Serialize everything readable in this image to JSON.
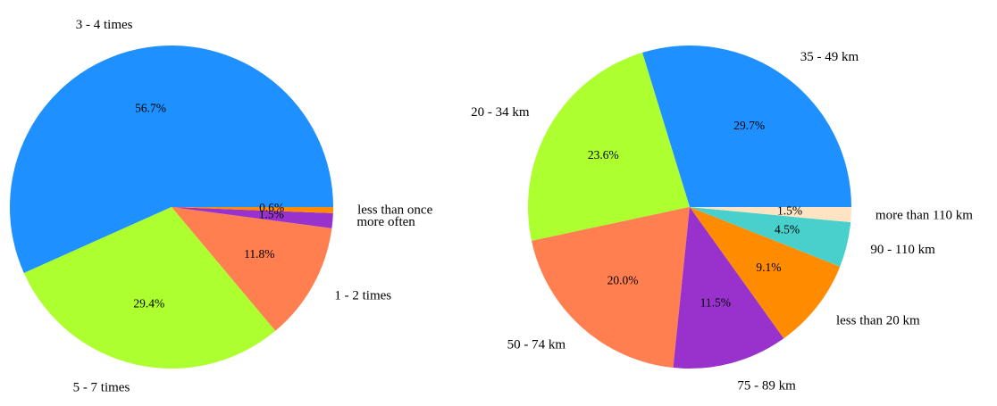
{
  "chart_data": [
    {
      "type": "pie",
      "title": "",
      "slices": [
        {
          "label": "3 - 4 times",
          "value": 56.7,
          "pct_label": "56.7%",
          "color": "#1E90FF"
        },
        {
          "label": "5 - 7 times",
          "value": 29.4,
          "pct_label": "29.4%",
          "color": "#ADFF2F"
        },
        {
          "label": "1 - 2 times",
          "value": 11.8,
          "pct_label": "11.8%",
          "color": "#FF7F50"
        },
        {
          "label": "more often",
          "value": 1.5,
          "pct_label": "1.5%",
          "color": "#9932CC"
        },
        {
          "label": "less than once",
          "value": 0.6,
          "pct_label": "0.6%",
          "color": "#FF8C00"
        }
      ]
    },
    {
      "type": "pie",
      "title": "",
      "slices": [
        {
          "label": "35 - 49 km",
          "value": 29.7,
          "pct_label": "29.7%",
          "color": "#1E90FF"
        },
        {
          "label": "20 - 34 km",
          "value": 23.6,
          "pct_label": "23.6%",
          "color": "#ADFF2F"
        },
        {
          "label": "50 - 74 km",
          "value": 20.0,
          "pct_label": "20.0%",
          "color": "#FF7F50"
        },
        {
          "label": "75 - 89 km",
          "value": 11.5,
          "pct_label": "11.5%",
          "color": "#9932CC"
        },
        {
          "label": "less than 20 km",
          "value": 9.1,
          "pct_label": "9.1%",
          "color": "#FF8C00"
        },
        {
          "label": "90 - 110 km",
          "value": 4.5,
          "pct_label": "4.5%",
          "color": "#48D1CC"
        },
        {
          "label": "more than 110 km",
          "value": 1.5,
          "pct_label": "1.5%",
          "color": "#FFE4C4"
        }
      ]
    }
  ]
}
